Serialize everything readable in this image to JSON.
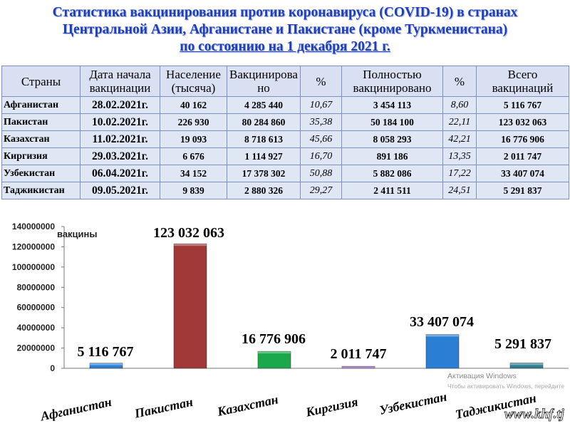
{
  "title": {
    "line1": "Статистика вакцинирования против коронавируса (COVID-19) в странах",
    "line2": "Центральной Азии, Афганистане и Пакистане (кроме Туркменистана)",
    "line3": "по состоянию на 1 декабря 2021 г."
  },
  "table": {
    "headers": [
      "Страны",
      "Дата начала вакцинации",
      "Население (тысяча)",
      "Вакцинировано",
      "%",
      "Полностью вакцинировано",
      "%",
      "Всего вакцинаций"
    ],
    "rows": [
      [
        "Афганистан",
        "28.02.2021г.",
        "40 162",
        "4 285 440",
        "10,67",
        "3 454 113",
        "8,60",
        "5 116 767"
      ],
      [
        "Пакистан",
        "10.02.2021г.",
        "226 930",
        "80 284 860",
        "35,38",
        "50 184 100",
        "22,11",
        "123 032 063"
      ],
      [
        "Казахстан",
        "11.02.2021г.",
        "19 093",
        "8 718 613",
        "45,66",
        "8 058 293",
        "42,21",
        "16 776 906"
      ],
      [
        "Киргизия",
        "29.03.2021г.",
        "6 676",
        "1 114 927",
        "16,70",
        "891 186",
        "13,35",
        "2 011 747"
      ],
      [
        "Узбекистан",
        "06.04.2021г.",
        "34 152",
        "17 378 302",
        "50,88",
        "5 882 086",
        "17,22",
        "33 407 074"
      ],
      [
        "Таджикистан",
        "09.05.2021г.",
        "9 839",
        "2 880 326",
        "29,27",
        "2 411 511",
        "24,51",
        "5 291 837"
      ]
    ]
  },
  "chart_data": {
    "type": "bar",
    "categories": [
      "Афганистан",
      "Пакистан",
      "Казахстан",
      "Киргизия",
      "Узбекистан",
      "Таджикистан"
    ],
    "values": [
      5116767,
      123032063,
      16776906,
      2011747,
      33407074,
      5291837
    ],
    "data_labels": [
      "5 116 767",
      "123 032 063",
      "16 776 906",
      "2 011 747",
      "33 407 074",
      "5 291 837"
    ],
    "colors": [
      "#2a7fd4",
      "#a03838",
      "#1aa84a",
      "#7a4aa8",
      "#2a7fd4",
      "#2f7f92"
    ],
    "title": "",
    "xlabel": "",
    "ylabel": "вакцины",
    "ylim": [
      0,
      140000000
    ],
    "yticks": [
      0,
      20000000,
      40000000,
      60000000,
      80000000,
      100000000,
      120000000,
      140000000
    ],
    "ytick_labels": [
      "0",
      "20000000",
      "40000000",
      "60000000",
      "80000000",
      "100000000",
      "120000000",
      "140000000"
    ],
    "grid": false,
    "legend": "none"
  },
  "watermark": {
    "activation_line1": "Активация Windows",
    "activation_line2": "Чтобы активировать Windows, перейдите",
    "site": "www.khf.tj"
  }
}
